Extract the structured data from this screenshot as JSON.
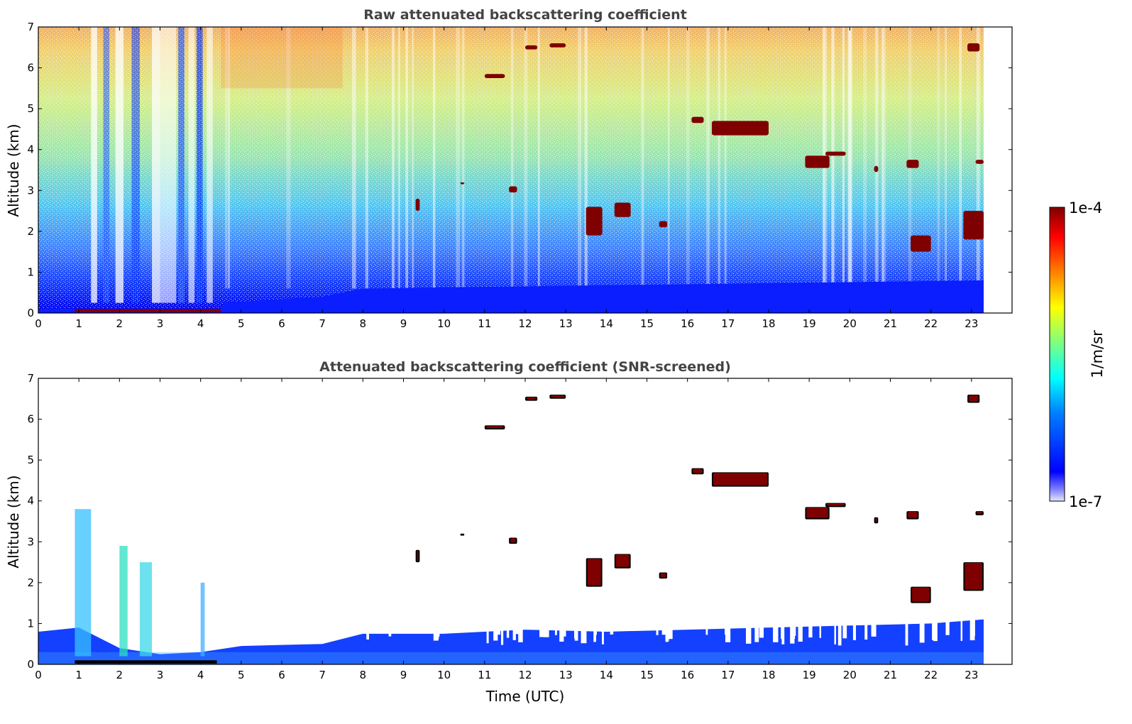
{
  "chart_data": [
    {
      "type": "heatmap",
      "title": "Raw attenuated backscattering coefficient",
      "xlabel": "",
      "ylabel": "Altitude (km)",
      "xlim": [
        0,
        24
      ],
      "ylim": [
        0,
        7
      ],
      "x_ticks": [
        "0",
        "1",
        "2",
        "3",
        "4",
        "5",
        "6",
        "7",
        "8",
        "9",
        "10",
        "11",
        "12",
        "13",
        "14",
        "15",
        "16",
        "17",
        "18",
        "19",
        "20",
        "21",
        "22",
        "23"
      ],
      "y_ticks": [
        "0",
        "1",
        "2",
        "3",
        "4",
        "5",
        "6",
        "7"
      ],
      "data_extent_x": [
        0,
        23.3
      ],
      "colorscale": "jet",
      "features": {
        "surface_layer_top_km": [
          [
            0,
            0.1
          ],
          [
            4.5,
            0.1
          ],
          [
            4.6,
            0.25
          ],
          [
            7,
            0.4
          ],
          [
            8,
            0.6
          ],
          [
            23.3,
            0.8
          ]
        ],
        "clouds": [
          {
            "x": [
              11.0,
              11.5
            ],
            "y": [
              5.75,
              5.85
            ]
          },
          {
            "x": [
              12.0,
              12.3
            ],
            "y": [
              6.45,
              6.55
            ]
          },
          {
            "x": [
              12.6,
              13.0
            ],
            "y": [
              6.5,
              6.6
            ]
          },
          {
            "x": [
              16.1,
              16.4
            ],
            "y": [
              4.65,
              4.8
            ]
          },
          {
            "x": [
              16.6,
              18.0
            ],
            "y": [
              4.35,
              4.7
            ]
          },
          {
            "x": [
              18.9,
              19.5
            ],
            "y": [
              3.55,
              3.85
            ]
          },
          {
            "x": [
              19.4,
              19.9
            ],
            "y": [
              3.85,
              3.95
            ]
          },
          {
            "x": [
              20.6,
              20.7
            ],
            "y": [
              3.45,
              3.6
            ]
          },
          {
            "x": [
              21.4,
              21.7
            ],
            "y": [
              3.55,
              3.75
            ]
          },
          {
            "x": [
              23.1,
              23.3
            ],
            "y": [
              3.65,
              3.75
            ]
          },
          {
            "x": [
              22.9,
              23.2
            ],
            "y": [
              6.4,
              6.6
            ]
          },
          {
            "x": [
              14.2,
              14.6
            ],
            "y": [
              2.35,
              2.7
            ]
          },
          {
            "x": [
              13.5,
              13.9
            ],
            "y": [
              1.9,
              2.6
            ]
          },
          {
            "x": [
              15.3,
              15.5
            ],
            "y": [
              2.1,
              2.25
            ]
          },
          {
            "x": [
              21.5,
              22.0
            ],
            "y": [
              1.5,
              1.9
            ]
          },
          {
            "x": [
              22.8,
              23.3
            ],
            "y": [
              1.8,
              2.5
            ]
          },
          {
            "x": [
              10.4,
              10.5
            ],
            "y": [
              3.15,
              3.2
            ]
          },
          {
            "x": [
              11.6,
              11.8
            ],
            "y": [
              2.95,
              3.1
            ]
          },
          {
            "x": [
              9.3,
              9.4
            ],
            "y": [
              2.5,
              2.8
            ]
          }
        ]
      }
    },
    {
      "type": "heatmap",
      "title": "Attenuated backscattering coefficient (SNR-screened)",
      "xlabel": "Time (UTC)",
      "ylabel": "Altitude (km)",
      "xlim": [
        0,
        24
      ],
      "ylim": [
        0,
        7
      ],
      "x_ticks": [
        "0",
        "1",
        "2",
        "3",
        "4",
        "5",
        "6",
        "7",
        "8",
        "9",
        "10",
        "11",
        "12",
        "13",
        "14",
        "15",
        "16",
        "17",
        "18",
        "19",
        "20",
        "21",
        "22",
        "23"
      ],
      "y_ticks": [
        "0",
        "1",
        "2",
        "3",
        "4",
        "5",
        "6",
        "7"
      ],
      "data_extent_x": [
        0,
        23.3
      ],
      "colorscale": "jet",
      "features": {
        "boundary_layer_top_km": [
          [
            0,
            0.8
          ],
          [
            1,
            0.9
          ],
          [
            2,
            0.4
          ],
          [
            3,
            0.25
          ],
          [
            4,
            0.3
          ],
          [
            5,
            0.45
          ],
          [
            7,
            0.5
          ],
          [
            8,
            0.75
          ],
          [
            10,
            0.75
          ],
          [
            12,
            0.85
          ],
          [
            14,
            0.8
          ],
          [
            16,
            0.85
          ],
          [
            18,
            0.9
          ],
          [
            20,
            0.95
          ],
          [
            22,
            1.0
          ],
          [
            23.3,
            1.1
          ]
        ],
        "plumes": [
          {
            "x": [
              0.9,
              1.3
            ],
            "y": [
              0.2,
              3.8
            ]
          },
          {
            "x": [
              2.0,
              2.2
            ],
            "y": [
              0.2,
              2.9
            ]
          },
          {
            "x": [
              2.5,
              2.8
            ],
            "y": [
              0.2,
              2.5
            ]
          },
          {
            "x": [
              4.0,
              4.1
            ],
            "y": [
              0.2,
              2.0
            ]
          }
        ]
      }
    }
  ],
  "colorbar": {
    "label": "1/m/sr",
    "max_label": "1e-4",
    "min_label": "1e-7",
    "scale": "log",
    "range": [
      1e-07,
      0.0001
    ]
  },
  "colors": {
    "jet": [
      "#00007f",
      "#0000ff",
      "#007fff",
      "#00ffff",
      "#7fff7f",
      "#ffff00",
      "#ff7f00",
      "#ff0000",
      "#7f0000"
    ],
    "cloud_core": "#7f0000",
    "cloud_edge": "#000000",
    "title": "#444444"
  }
}
